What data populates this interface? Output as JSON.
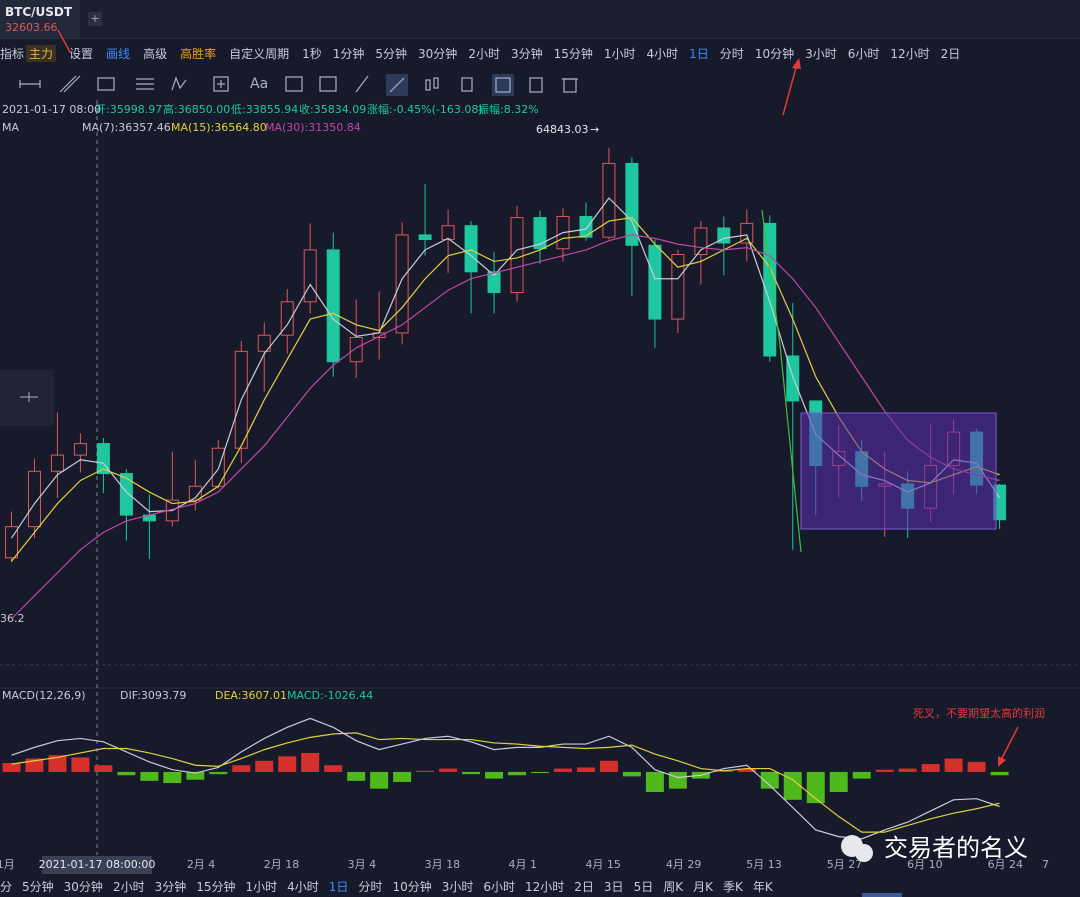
{
  "header": {
    "symbol": "BTC/USDT",
    "price": "32603.66",
    "add": "+"
  },
  "toolbar": {
    "left": [
      {
        "text": "指标",
        "style": "plain"
      },
      {
        "text": "主力",
        "style": "tag"
      },
      {
        "text": "设置",
        "style": "plain"
      },
      {
        "text": "画线",
        "style": "blue"
      },
      {
        "text": "高级",
        "style": "plain"
      },
      {
        "text": "高胜率",
        "style": "orange"
      },
      {
        "text": "自定义周期",
        "style": "plain"
      }
    ],
    "periods": [
      "1秒",
      "1分钟",
      "5分钟",
      "30分钟",
      "2小时",
      "3分钟",
      "15分钟",
      "1小时",
      "4小时",
      "1日",
      "分时",
      "10分钟",
      "3小时",
      "6小时",
      "12小时",
      "2日"
    ],
    "active": "1日"
  },
  "tools": {
    "text_tool": "Aa"
  },
  "info": {
    "time": "2021-01-17 08:00",
    "open": "开:35998.97",
    "high": "高:36850.00",
    "low": "低:33855.94",
    "close": "收:35834.09",
    "change": "涨幅:-0.45%(-163.08)",
    "amplitude": "振幅:8.32%"
  },
  "ma_legend": {
    "name": "MA",
    "ma7": "MA(7):36357.46",
    "ma15": "MA(15):36564.80",
    "ma30": "MA(30):31350.84"
  },
  "macd_legend": {
    "name": "MACD(12,26,9)",
    "dif": "DIF:3093.79",
    "dea": "DEA:3607.01",
    "macd": "MACD:-1026.44"
  },
  "crosshair": {
    "date": "2021-01-17 08:00:00",
    "price": "36.2"
  },
  "max_label": "64843.03",
  "annotation": "死叉，不要期望太高的利润",
  "watermark": "交易者的名义",
  "bottom_periods": [
    "分",
    "5分钟",
    "30分钟",
    "2小时",
    "3分钟",
    "15分钟",
    "1小时",
    "4小时",
    "1日",
    "分时",
    "10分钟",
    "3小时",
    "6小时",
    "12小时",
    "2日",
    "3日",
    "5日",
    "周K",
    "月K",
    "季K",
    "年K"
  ],
  "bottom_active": "1日",
  "chart_data": {
    "type": "candlestick",
    "up_color": "#e0575b",
    "down_color": "#1fc7a0",
    "x": [
      2,
      6,
      10,
      14,
      18,
      22,
      26,
      30,
      34,
      38,
      42,
      46,
      50,
      54,
      58,
      62,
      66,
      70,
      74,
      78,
      82,
      86,
      90,
      94,
      98,
      102,
      106,
      110,
      114,
      118,
      122,
      126,
      130,
      134,
      138,
      142,
      146,
      150,
      154,
      158,
      162,
      166,
      170,
      174
    ],
    "open": [
      29300,
      32000,
      36800,
      38200,
      39200,
      36600,
      33000,
      32500,
      34300,
      35500,
      38800,
      47200,
      48600,
      51500,
      56000,
      46300,
      48400,
      48800,
      57300,
      56900,
      58100,
      54100,
      52300,
      58800,
      56100,
      58900,
      57100,
      63500,
      56400,
      50000,
      55600,
      57900,
      56600,
      58300,
      46800,
      42900,
      37300,
      38500,
      35500,
      35700,
      33600,
      37300,
      40200,
      35600
    ],
    "high": [
      33300,
      37900,
      41900,
      40100,
      39700,
      37000,
      34800,
      38500,
      37800,
      39500,
      48100,
      49700,
      52600,
      58300,
      57500,
      51700,
      52400,
      58400,
      61700,
      59500,
      58500,
      55800,
      59800,
      59400,
      59600,
      60100,
      64850,
      64000,
      56900,
      56000,
      58500,
      58900,
      59500,
      59000,
      51400,
      42900,
      40800,
      39500,
      38500,
      36800,
      40900,
      41300,
      40500,
      35700
    ],
    "low": [
      28900,
      31000,
      34500,
      36700,
      34900,
      30800,
      29200,
      32000,
      33400,
      35300,
      37500,
      43700,
      47000,
      50500,
      45000,
      44900,
      46500,
      47800,
      55500,
      54000,
      50500,
      50500,
      51500,
      54800,
      55000,
      56800,
      56900,
      52000,
      47500,
      48800,
      53000,
      53800,
      55000,
      46300,
      30000,
      33000,
      34500,
      34200,
      31100,
      31000,
      32400,
      34800,
      34800,
      31800
    ],
    "close": [
      32000,
      36800,
      38200,
      39200,
      36600,
      33000,
      32500,
      34300,
      35500,
      38800,
      47200,
      48600,
      51500,
      56000,
      46300,
      48400,
      48800,
      57300,
      56900,
      58100,
      54100,
      52300,
      58800,
      56100,
      58900,
      57100,
      63500,
      56400,
      50000,
      55600,
      57900,
      56600,
      58300,
      46800,
      42900,
      37300,
      38500,
      35500,
      35700,
      33600,
      37300,
      40200,
      35600,
      32600
    ],
    "ma": [
      {
        "name": "MA(7)",
        "color": "#c9ccd6",
        "values": [
          31000,
          34000,
          36500,
          37800,
          37500,
          35000,
          33300,
          33400,
          34500,
          37000,
          43000,
          47000,
          49500,
          53000,
          50000,
          48500,
          48800,
          53500,
          56000,
          57000,
          55500,
          53800,
          56000,
          56500,
          57500,
          57800,
          60500,
          58500,
          53500,
          53500,
          56000,
          57000,
          57300,
          51500,
          45000,
          40000,
          38200,
          36500,
          36000,
          35000,
          35800,
          37800,
          37500,
          34500
        ]
      },
      {
        "name": "MA(15)",
        "color": "#e3d13a",
        "values": [
          29000,
          31500,
          34000,
          36000,
          37000,
          36200,
          35000,
          34000,
          34200,
          35500,
          39000,
          43000,
          46500,
          50000,
          50500,
          49500,
          49000,
          51000,
          53500,
          55500,
          56000,
          55000,
          55300,
          56000,
          57000,
          57200,
          58500,
          58800,
          56500,
          54500,
          55000,
          56000,
          57000,
          54500,
          50000,
          45000,
          41500,
          38500,
          37000,
          36000,
          35800,
          36500,
          37200,
          36500
        ]
      },
      {
        "name": "MA(30)",
        "color": "#c247a8",
        "values": [
          24000,
          26000,
          28000,
          30000,
          31500,
          32500,
          33000,
          33500,
          34000,
          35000,
          37000,
          39000,
          41500,
          44000,
          46000,
          47500,
          48500,
          49500,
          51000,
          52500,
          53500,
          54000,
          54500,
          55000,
          55500,
          56000,
          56800,
          57300,
          57000,
          56500,
          56200,
          56000,
          56200,
          55500,
          53500,
          51000,
          48000,
          45000,
          42000,
          39500,
          38000,
          37000,
          36500,
          36000
        ]
      }
    ],
    "ylim": [
      20000,
      69000
    ],
    "xlim": [
      0,
      188
    ],
    "xticks": [
      {
        "value": 1,
        "label": "1月"
      },
      {
        "value": 35,
        "label": "2月 4"
      },
      {
        "value": 49,
        "label": "2月 18"
      },
      {
        "value": 63,
        "label": "3月 4"
      },
      {
        "value": 77,
        "label": "3月 18"
      },
      {
        "value": 91,
        "label": "4月 1"
      },
      {
        "value": 105,
        "label": "4月 15"
      },
      {
        "value": 119,
        "label": "4月 29"
      },
      {
        "value": 133,
        "label": "5月 13"
      },
      {
        "value": 147,
        "label": "5月 27"
      },
      {
        "value": 161,
        "label": "6月 10"
      },
      {
        "value": 175,
        "label": "6月 24"
      },
      {
        "value": 182,
        "label": "7"
      }
    ],
    "macd": {
      "hist": [
        800,
        1200,
        1500,
        1300,
        600,
        -300,
        -800,
        -1000,
        -700,
        -200,
        600,
        1000,
        1400,
        1700,
        600,
        -800,
        -1500,
        -900,
        100,
        300,
        -200,
        -600,
        -300,
        -100,
        300,
        400,
        1000,
        -400,
        -1800,
        -1500,
        -600,
        200,
        300,
        -1500,
        -2500,
        -2800,
        -1800,
        -600,
        200,
        300,
        700,
        1200,
        900,
        -300
      ],
      "dif": [
        1500,
        2200,
        2800,
        3000,
        2700,
        1800,
        900,
        200,
        -100,
        400,
        1800,
        3000,
        4000,
        4800,
        4000,
        2800,
        2000,
        2500,
        3000,
        3200,
        2700,
        2000,
        2200,
        2200,
        2500,
        2500,
        3200,
        2200,
        200,
        -500,
        -300,
        300,
        600,
        -1200,
        -3200,
        -5200,
        -5800,
        -6000,
        -5200,
        -4500,
        -3500,
        -2500,
        -2400,
        -3100
      ],
      "dea": [
        700,
        1000,
        1300,
        1700,
        2100,
        2100,
        1700,
        1200,
        600,
        500,
        1200,
        2000,
        2600,
        3100,
        3400,
        3500,
        2900,
        3000,
        2900,
        2900,
        2900,
        2600,
        2500,
        2300,
        2200,
        2100,
        2200,
        2400,
        1600,
        1000,
        300,
        100,
        300,
        300,
        -700,
        -2400,
        -4000,
        -5400,
        -5400,
        -4800,
        -4200,
        -3700,
        -3300,
        -2800
      ],
      "dif_color": "#c9ccd6",
      "dea_color": "#e3d13a",
      "pos_color": "#d6302c",
      "neg_color": "#4fb81c",
      "ylim": [
        -7000,
        6000
      ]
    }
  }
}
